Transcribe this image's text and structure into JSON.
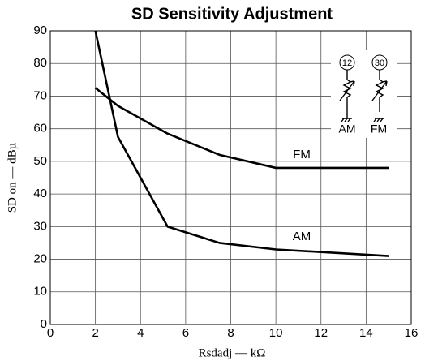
{
  "chart_data": {
    "type": "line",
    "title": "SD Sensitivity Adjustment",
    "x_label": "Rsdadj — kΩ",
    "y_label": "SD on — dBµ",
    "x": [
      2,
      3,
      5.2,
      7.5,
      10,
      15
    ],
    "series": [
      {
        "name": "AM",
        "color": "#000000",
        "values": [
          90,
          57.5,
          30,
          25,
          23,
          21
        ]
      },
      {
        "name": "FM",
        "color": "#000000",
        "values": [
          72.5,
          67,
          58.5,
          52,
          48,
          48
        ]
      }
    ],
    "xlim": [
      0,
      16
    ],
    "xticks": [
      0,
      2,
      4,
      6,
      8,
      10,
      12,
      14,
      16
    ],
    "ylim": [
      0,
      90
    ],
    "yticks": [
      0,
      10,
      20,
      30,
      40,
      50,
      60,
      70,
      80,
      90
    ],
    "grid": true,
    "annotations": [
      "12",
      "30",
      "AM",
      "FM"
    ]
  }
}
